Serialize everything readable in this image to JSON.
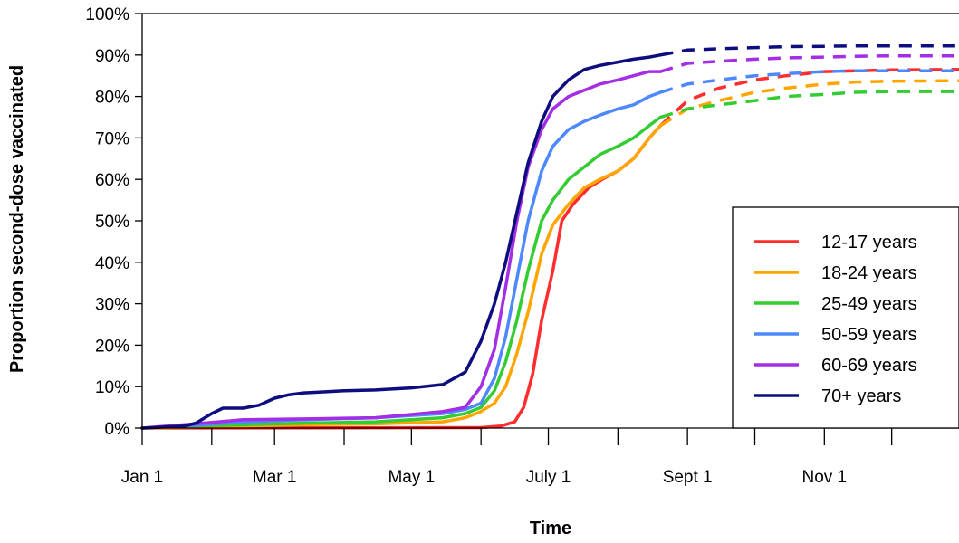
{
  "chart_data": {
    "type": "line",
    "title": "",
    "xlabel": "Time",
    "ylabel": "Proportion second-dose vaccinated",
    "ylim": [
      0,
      1
    ],
    "xlim": [
      "2021-01-01",
      "2021-12-31"
    ],
    "x_tick_dates": [
      "2021-01-01",
      "2021-02-01",
      "2021-03-01",
      "2021-04-01",
      "2021-05-01",
      "2021-06-01",
      "2021-07-01",
      "2021-08-01",
      "2021-09-01",
      "2021-10-01",
      "2021-11-01",
      "2021-12-01"
    ],
    "x_tick_labels": [
      "Jan 1",
      "",
      "Mar 1",
      "",
      "May 1",
      "",
      "July 1",
      "",
      "Sept 1",
      "",
      "Nov 1",
      ""
    ],
    "y_ticks": [
      0,
      0.1,
      0.2,
      0.3,
      0.4,
      0.5,
      0.6,
      0.7,
      0.8,
      0.9,
      1.0
    ],
    "y_tick_labels": [
      "0%",
      "10%",
      "20%",
      "30%",
      "40%",
      "50%",
      "60%",
      "70%",
      "80%",
      "90%",
      "100%"
    ],
    "grid": false,
    "legend_position": "bottom-right",
    "line_styles": {
      "observed": "solid",
      "projected": "dashed"
    },
    "series": [
      {
        "name": "12-17 years",
        "color": "#ff2d2d",
        "observed": {
          "x": [
            "2021-01-01",
            "2021-06-01",
            "2021-06-10",
            "2021-06-16",
            "2021-06-20",
            "2021-06-24",
            "2021-06-28",
            "2021-07-03",
            "2021-07-07",
            "2021-07-12",
            "2021-07-19",
            "2021-07-25",
            "2021-08-01",
            "2021-08-08",
            "2021-08-15",
            "2021-08-20"
          ],
          "y": [
            0,
            0.001,
            0.005,
            0.015,
            0.05,
            0.13,
            0.26,
            0.38,
            0.5,
            0.54,
            0.58,
            0.6,
            0.62,
            0.65,
            0.7,
            0.73
          ]
        },
        "projected": {
          "x": [
            "2021-08-20",
            "2021-09-01",
            "2021-09-15",
            "2021-10-01",
            "2021-10-15",
            "2021-11-01",
            "2021-11-15",
            "2021-12-01",
            "2021-12-31"
          ],
          "y": [
            0.73,
            0.79,
            0.82,
            0.84,
            0.85,
            0.86,
            0.862,
            0.864,
            0.865
          ]
        }
      },
      {
        "name": "18-24 years",
        "color": "#ffa500",
        "observed": {
          "x": [
            "2021-01-01",
            "2021-01-20",
            "2021-02-15",
            "2021-03-15",
            "2021-04-15",
            "2021-05-15",
            "2021-05-25",
            "2021-06-01",
            "2021-06-07",
            "2021-06-12",
            "2021-06-17",
            "2021-06-22",
            "2021-06-28",
            "2021-07-03",
            "2021-07-10",
            "2021-07-17",
            "2021-07-24",
            "2021-08-01",
            "2021-08-08",
            "2021-08-15",
            "2021-08-20"
          ],
          "y": [
            0,
            0.002,
            0.005,
            0.008,
            0.01,
            0.015,
            0.025,
            0.04,
            0.06,
            0.1,
            0.18,
            0.28,
            0.42,
            0.49,
            0.54,
            0.58,
            0.6,
            0.62,
            0.65,
            0.7,
            0.73
          ]
        },
        "projected": {
          "x": [
            "2021-08-20",
            "2021-09-01",
            "2021-09-15",
            "2021-10-01",
            "2021-10-15",
            "2021-11-01",
            "2021-11-15",
            "2021-12-01",
            "2021-12-31"
          ],
          "y": [
            0.73,
            0.77,
            0.79,
            0.81,
            0.82,
            0.83,
            0.835,
            0.837,
            0.838
          ]
        }
      },
      {
        "name": "25-49 years",
        "color": "#33cc33",
        "observed": {
          "x": [
            "2021-01-01",
            "2021-01-20",
            "2021-02-15",
            "2021-03-15",
            "2021-04-15",
            "2021-05-15",
            "2021-05-25",
            "2021-06-01",
            "2021-06-07",
            "2021-06-12",
            "2021-06-17",
            "2021-06-22",
            "2021-06-28",
            "2021-07-03",
            "2021-07-10",
            "2021-07-17",
            "2021-07-24",
            "2021-08-01",
            "2021-08-08",
            "2021-08-15",
            "2021-08-20"
          ],
          "y": [
            0,
            0.005,
            0.008,
            0.012,
            0.015,
            0.025,
            0.035,
            0.05,
            0.09,
            0.16,
            0.26,
            0.38,
            0.5,
            0.55,
            0.6,
            0.63,
            0.66,
            0.68,
            0.7,
            0.73,
            0.75
          ]
        },
        "projected": {
          "x": [
            "2021-08-20",
            "2021-09-01",
            "2021-09-15",
            "2021-10-01",
            "2021-10-15",
            "2021-11-01",
            "2021-11-15",
            "2021-12-01",
            "2021-12-31"
          ],
          "y": [
            0.75,
            0.77,
            0.78,
            0.79,
            0.8,
            0.805,
            0.81,
            0.812,
            0.812
          ]
        }
      },
      {
        "name": "50-59 years",
        "color": "#4d88ff",
        "observed": {
          "x": [
            "2021-01-01",
            "2021-01-20",
            "2021-02-15",
            "2021-03-15",
            "2021-04-15",
            "2021-05-15",
            "2021-05-25",
            "2021-06-01",
            "2021-06-07",
            "2021-06-12",
            "2021-06-17",
            "2021-06-22",
            "2021-06-28",
            "2021-07-03",
            "2021-07-10",
            "2021-07-17",
            "2021-07-24",
            "2021-08-01",
            "2021-08-08",
            "2021-08-15",
            "2021-08-20"
          ],
          "y": [
            0,
            0.005,
            0.015,
            0.02,
            0.025,
            0.035,
            0.045,
            0.06,
            0.12,
            0.22,
            0.36,
            0.5,
            0.62,
            0.68,
            0.72,
            0.74,
            0.755,
            0.77,
            0.78,
            0.8,
            0.81
          ]
        },
        "projected": {
          "x": [
            "2021-08-20",
            "2021-09-01",
            "2021-09-15",
            "2021-10-01",
            "2021-10-15",
            "2021-11-01",
            "2021-11-15",
            "2021-12-01",
            "2021-12-31"
          ],
          "y": [
            0.81,
            0.83,
            0.84,
            0.85,
            0.855,
            0.86,
            0.862,
            0.862,
            0.862
          ]
        }
      },
      {
        "name": "60-69 years",
        "color": "#a32ee6",
        "observed": {
          "x": [
            "2021-01-01",
            "2021-01-20",
            "2021-02-15",
            "2021-03-15",
            "2021-04-15",
            "2021-05-15",
            "2021-05-25",
            "2021-06-01",
            "2021-06-07",
            "2021-06-12",
            "2021-06-17",
            "2021-06-22",
            "2021-06-28",
            "2021-07-03",
            "2021-07-10",
            "2021-07-17",
            "2021-07-24",
            "2021-08-01",
            "2021-08-08",
            "2021-08-15",
            "2021-08-20"
          ],
          "y": [
            0,
            0.008,
            0.02,
            0.022,
            0.025,
            0.04,
            0.05,
            0.1,
            0.19,
            0.34,
            0.5,
            0.63,
            0.72,
            0.77,
            0.8,
            0.815,
            0.83,
            0.84,
            0.85,
            0.86,
            0.86
          ]
        },
        "projected": {
          "x": [
            "2021-08-20",
            "2021-09-01",
            "2021-09-15",
            "2021-10-01",
            "2021-10-15",
            "2021-11-01",
            "2021-11-15",
            "2021-12-01",
            "2021-12-31"
          ],
          "y": [
            0.86,
            0.88,
            0.885,
            0.89,
            0.893,
            0.895,
            0.897,
            0.898,
            0.898
          ]
        }
      },
      {
        "name": "70+ years",
        "color": "#0d0d80",
        "observed": {
          "x": [
            "2021-01-01",
            "2021-01-20",
            "2021-01-25",
            "2021-02-01",
            "2021-02-06",
            "2021-02-15",
            "2021-02-22",
            "2021-03-01",
            "2021-03-07",
            "2021-03-14",
            "2021-03-21",
            "2021-04-01",
            "2021-04-15",
            "2021-05-01",
            "2021-05-15",
            "2021-05-25",
            "2021-06-01",
            "2021-06-07",
            "2021-06-12",
            "2021-06-17",
            "2021-06-22",
            "2021-06-28",
            "2021-07-03",
            "2021-07-10",
            "2021-07-17",
            "2021-07-24",
            "2021-08-01",
            "2021-08-08",
            "2021-08-15",
            "2021-08-20"
          ],
          "y": [
            0,
            0.005,
            0.012,
            0.035,
            0.048,
            0.048,
            0.055,
            0.072,
            0.08,
            0.085,
            0.087,
            0.09,
            0.092,
            0.097,
            0.105,
            0.135,
            0.21,
            0.3,
            0.4,
            0.52,
            0.64,
            0.74,
            0.8,
            0.84,
            0.865,
            0.875,
            0.883,
            0.89,
            0.895,
            0.9
          ]
        },
        "projected": {
          "x": [
            "2021-08-20",
            "2021-09-01",
            "2021-09-15",
            "2021-10-01",
            "2021-10-15",
            "2021-11-01",
            "2021-11-15",
            "2021-12-01",
            "2021-12-31"
          ],
          "y": [
            0.9,
            0.912,
            0.915,
            0.918,
            0.92,
            0.921,
            0.922,
            0.922,
            0.922
          ]
        }
      }
    ]
  }
}
